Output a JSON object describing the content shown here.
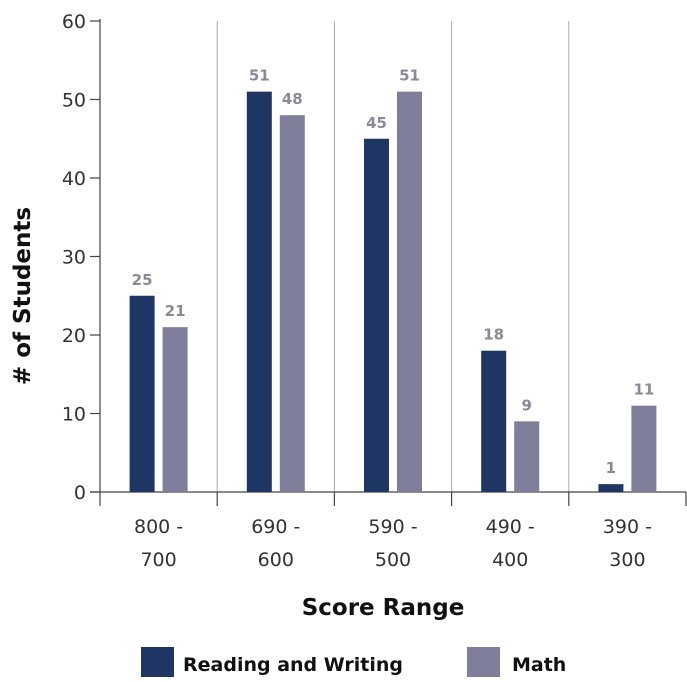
{
  "chart_data": {
    "type": "bar",
    "xlabel": "Score Range",
    "ylabel": "# of Students",
    "ylim": [
      0,
      60
    ],
    "yticks": [
      0,
      10,
      20,
      30,
      40,
      50,
      60
    ],
    "categories": [
      [
        "800 -",
        "700"
      ],
      [
        "690 -",
        "600"
      ],
      [
        "590 -",
        "500"
      ],
      [
        "490 -",
        "400"
      ],
      [
        "390 -",
        "300"
      ]
    ],
    "series": [
      {
        "name": "Reading and Writing",
        "color": "#1f3564",
        "values": [
          25,
          51,
          45,
          18,
          1
        ]
      },
      {
        "name": "Math",
        "color": "#7f7f9b",
        "values": [
          21,
          48,
          51,
          9,
          11
        ]
      }
    ],
    "data_labels": true,
    "grid": "vertical category separators",
    "legend": "bottom-center"
  }
}
